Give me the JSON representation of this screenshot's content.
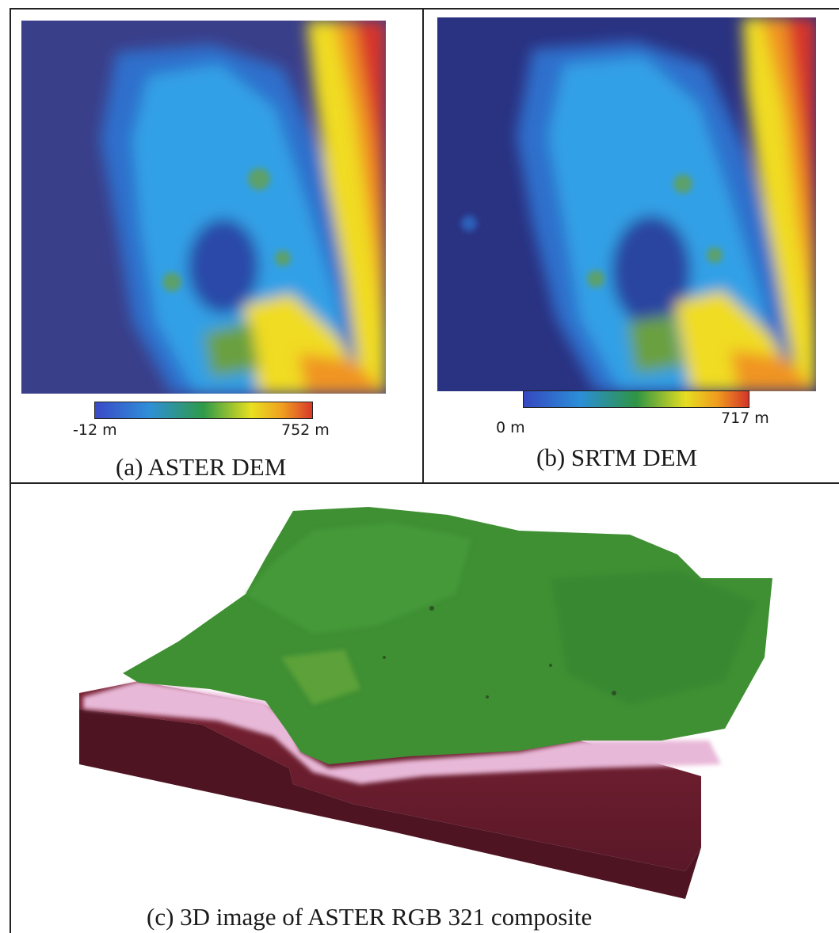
{
  "panels": [
    {
      "caption": "(a) ASTER DEM",
      "colorbar": {
        "min_label": "-12 m",
        "max_label": "752 m"
      }
    },
    {
      "caption": "(b) SRTM DEM",
      "colorbar": {
        "min_label": "0 m",
        "max_label": "717 m"
      }
    },
    {
      "caption": "(c) 3D image of ASTER RGB 321 composite"
    }
  ],
  "colors": {
    "low": "#2c3590",
    "mid_blue": "#2f95e0",
    "green": "#3a9a46",
    "yellow": "#f0e020",
    "high": "#d8342a",
    "vegetation": "#3f8f33",
    "sea": "#6a1e2c",
    "shore": "#e6b6d6"
  }
}
